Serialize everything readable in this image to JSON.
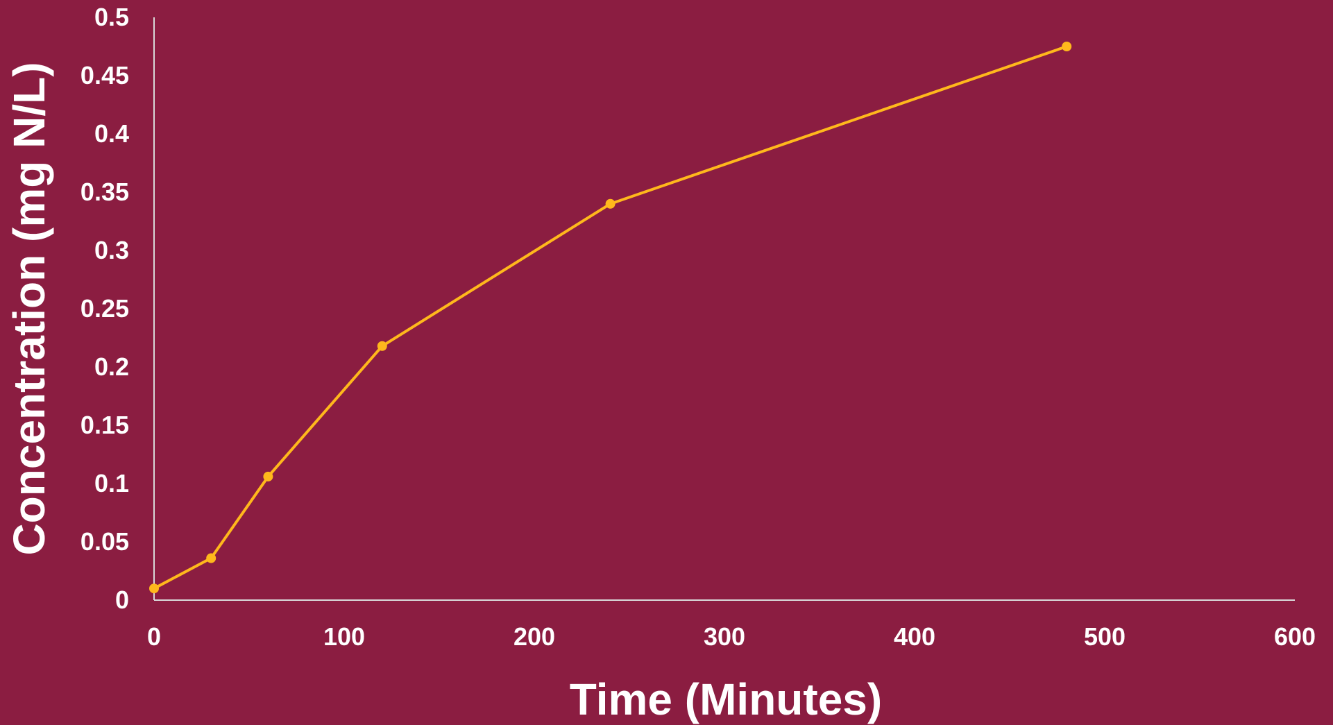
{
  "chart_data": {
    "type": "line",
    "title": "",
    "xlabel": "Time (Minutes)",
    "ylabel": "Concentration (mg N/L)",
    "xlim": [
      0,
      600
    ],
    "ylim": [
      0,
      0.5
    ],
    "x_ticks": [
      "0",
      "100",
      "200",
      "300",
      "400",
      "500",
      "600"
    ],
    "y_ticks": [
      "0",
      "0.05",
      "0.1",
      "0.15",
      "0.2",
      "0.25",
      "0.3",
      "0.35",
      "0.4",
      "0.45",
      "0.5"
    ],
    "grid": false,
    "legend": "none",
    "series": [
      {
        "x": [
          0,
          30,
          60,
          120,
          240,
          480
        ],
        "y": [
          0.01,
          0.036,
          0.106,
          0.218,
          0.34,
          0.475
        ]
      }
    ],
    "colors": {
      "background": "#8B1D41",
      "line": "#FFB81C",
      "axis": "#D9D9D9",
      "text": "#FFFFFF"
    }
  }
}
